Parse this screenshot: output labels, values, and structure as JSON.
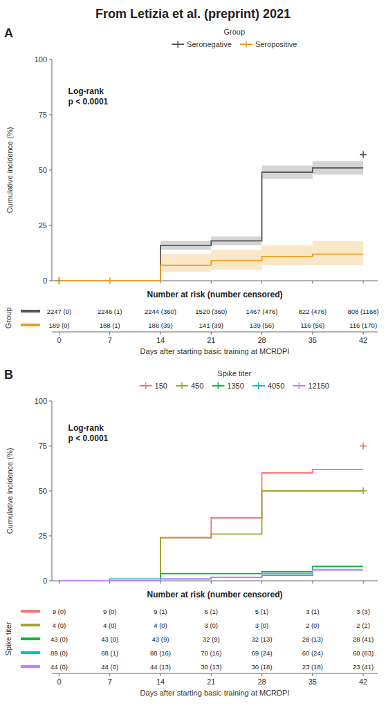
{
  "title": "From Letizia et al. (preprint) 2021",
  "chart_data": [
    {
      "type": "step",
      "label": "A",
      "legend_title": "Group",
      "annotation": "Log-rank\np < 0.0001",
      "ylabel": "Cumulative incidence (%)",
      "xlim": [
        -1,
        44
      ],
      "ylim": [
        0,
        100
      ],
      "xticks": [
        0,
        7,
        14,
        21,
        28,
        35,
        42
      ],
      "yticks": [
        0,
        25,
        50,
        75,
        100
      ],
      "tick_labels": "y",
      "series": [
        {
          "name": "Seronegative",
          "color": "#555555",
          "x": [
            0,
            14,
            14,
            21,
            21,
            28,
            28,
            35,
            35,
            42
          ],
          "values": [
            0,
            0,
            16,
            16,
            18,
            18,
            49,
            49,
            51,
            51
          ],
          "ci_low": [
            0,
            0,
            14,
            14,
            16,
            16,
            46,
            46,
            48,
            48
          ],
          "ci_high": [
            0,
            0,
            18,
            18,
            20,
            20,
            52,
            52,
            54,
            54
          ],
          "censor_x": [
            0,
            42
          ],
          "censor_y": [
            0,
            57
          ]
        },
        {
          "name": "Seropositive",
          "color": "#E8A020",
          "x": [
            0,
            7,
            7,
            14,
            14,
            21,
            21,
            28,
            28,
            35,
            35,
            42
          ],
          "values": [
            0,
            0,
            0,
            0,
            7,
            7,
            9,
            9,
            11,
            11,
            12,
            12
          ],
          "ci_low": [
            0,
            0,
            0,
            0,
            4,
            4,
            5,
            5,
            7,
            7,
            7,
            7
          ],
          "ci_high": [
            0,
            0,
            0,
            0,
            12,
            12,
            14,
            14,
            16,
            16,
            18,
            18
          ],
          "censor_x": [
            0,
            7
          ],
          "censor_y": [
            0,
            0
          ]
        }
      ],
      "risk_table": {
        "title": "Number at risk (number censored)",
        "ylabel": "Group",
        "xlabel": "Days after starting basic training at MCRDPI",
        "xticks": [
          0,
          7,
          14,
          21,
          28,
          35,
          42
        ],
        "rows": [
          {
            "color": "#555555",
            "values": [
              "2247 (0)",
              "2246 (1)",
              "2244 (360)",
              "1520 (360)",
              "1467 (476)",
              "822 (476)",
              "808 (1168)"
            ]
          },
          {
            "color": "#E8A020",
            "values": [
              "189 (0)",
              "188 (1)",
              "188 (39)",
              "141 (39)",
              "139 (56)",
              "116 (56)",
              "116 (170)"
            ]
          }
        ]
      }
    },
    {
      "type": "step",
      "label": "B",
      "legend_title": "Spike titer",
      "annotation": "Log-rank\np < 0.0001",
      "ylabel": "Cumulative incidence (%)",
      "xlim": [
        -1,
        44
      ],
      "ylim": [
        0,
        100
      ],
      "xticks": [
        0,
        7,
        14,
        21,
        28,
        35,
        42
      ],
      "yticks": [
        0,
        25,
        50,
        75,
        100
      ],
      "tick_labels": "y",
      "series": [
        {
          "name": "150",
          "color": "#F8766D",
          "x": [
            0,
            14,
            14,
            21,
            21,
            28,
            28,
            35,
            35,
            42
          ],
          "values": [
            0,
            0,
            24,
            24,
            35,
            35,
            60,
            60,
            62,
            62
          ],
          "censor_x": [
            42
          ],
          "censor_y": [
            75
          ]
        },
        {
          "name": "450",
          "color": "#9DA62B",
          "x": [
            0,
            14,
            14,
            21,
            21,
            28,
            28,
            42
          ],
          "values": [
            0,
            0,
            24,
            24,
            26,
            26,
            50,
            50
          ],
          "censor_x": [
            42
          ],
          "censor_y": [
            50
          ]
        },
        {
          "name": "1350",
          "color": "#00BA38",
          "x": [
            0,
            14,
            14,
            21,
            21,
            28,
            28,
            35,
            35,
            42
          ],
          "values": [
            0,
            0,
            4,
            4,
            4,
            4,
            5,
            5,
            8,
            8
          ]
        },
        {
          "name": "4050",
          "color": "#00BFC4",
          "x": [
            0,
            7,
            7,
            14,
            14,
            21,
            21,
            28,
            28,
            35,
            35,
            42
          ],
          "values": [
            0,
            0,
            1,
            1,
            1,
            1,
            2,
            2,
            3,
            3,
            6,
            6
          ]
        },
        {
          "name": "12150",
          "color": "#C77CFF",
          "x": [
            0,
            14,
            14,
            21,
            21,
            28,
            28,
            35,
            35,
            42
          ],
          "values": [
            0,
            0,
            1,
            1,
            2,
            2,
            4,
            4,
            6,
            6
          ]
        }
      ],
      "risk_table": {
        "title": "Number at risk (number censored)",
        "ylabel": "Spike titer",
        "xlabel": "Days after starting basic training at MCRDPI",
        "xticks": [
          0,
          7,
          14,
          21,
          28,
          35,
          42
        ],
        "rows": [
          {
            "color": "#F8766D",
            "values": [
              "9 (0)",
              "9 (0)",
              "9 (1)",
              "6 (1)",
              "5 (1)",
              "3 (1)",
              "3 (3)"
            ]
          },
          {
            "color": "#9DA62B",
            "values": [
              "4 (0)",
              "4 (0)",
              "4 (0)",
              "3 (0)",
              "3 (0)",
              "2 (0)",
              "2 (2)"
            ]
          },
          {
            "color": "#00BA38",
            "values": [
              "43 (0)",
              "43 (0)",
              "43 (9)",
              "32 (9)",
              "32 (13)",
              "28 (13)",
              "28 (41)"
            ]
          },
          {
            "color": "#00BFC4",
            "values": [
              "89 (0)",
              "88 (1)",
              "88 (16)",
              "70 (16)",
              "69 (24)",
              "60 (24)",
              "60 (83)"
            ]
          },
          {
            "color": "#C77CFF",
            "values": [
              "44 (0)",
              "44 (0)",
              "44 (13)",
              "30 (13)",
              "30 (18)",
              "23 (18)",
              "23 (41)"
            ]
          }
        ]
      }
    }
  ]
}
